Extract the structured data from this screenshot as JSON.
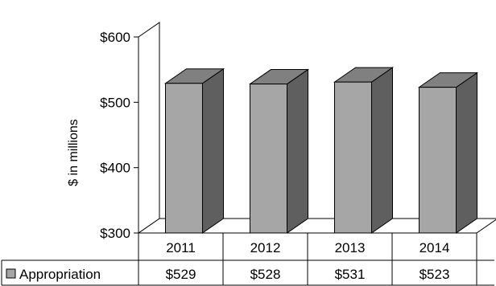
{
  "chart_data": {
    "type": "bar",
    "categories": [
      "2011",
      "2012",
      "2013",
      "2014"
    ],
    "series": [
      {
        "name": "Appropriation",
        "values": [
          529,
          528,
          531,
          523
        ]
      }
    ],
    "ylabel": "$ in millions",
    "ylim": [
      300,
      600
    ],
    "yticks": [
      "$300",
      "$400",
      "$500",
      "$600"
    ],
    "data_table": {
      "row_label": "Appropriation",
      "cells": [
        "$529",
        "$528",
        "$531",
        "$523"
      ]
    },
    "colors": {
      "bar_front": "#a6a6a6",
      "bar_side": "#5f5f5f",
      "bar_top": "#808080",
      "legend_swatch": "#a6a6a6"
    }
  }
}
